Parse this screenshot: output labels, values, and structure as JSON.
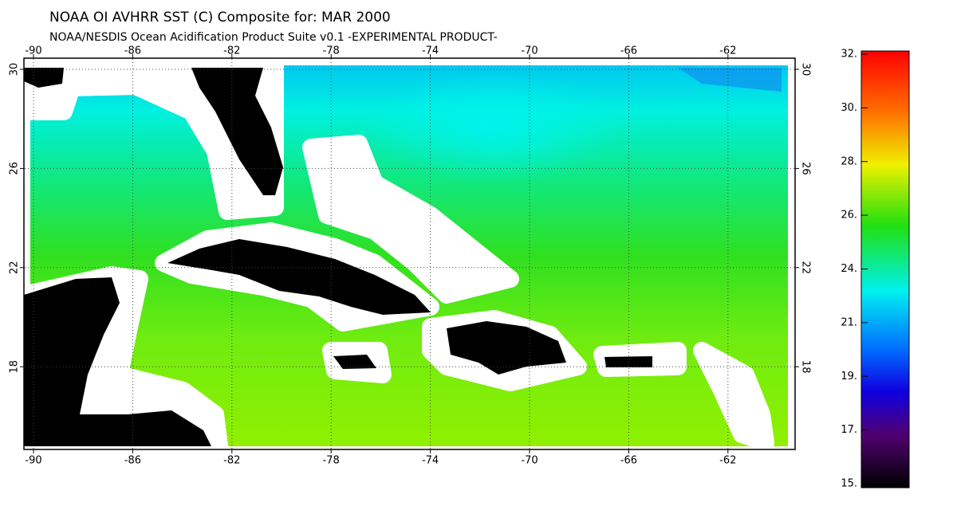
{
  "header": {
    "title": "NOAA OI AVHRR SST (C) Composite for: MAR 2000",
    "subtitle": "NOAA/NESDIS Ocean Acidification Product Suite  v0.1 -EXPERIMENTAL PRODUCT-"
  },
  "map": {
    "lon_ticks": [
      -90,
      -86,
      -82,
      -78,
      -74,
      -70,
      -66,
      -62
    ],
    "lat_ticks": [
      30,
      26,
      22,
      18
    ]
  },
  "colorbar": {
    "labels": [
      "32.",
      "30.",
      "28.",
      "26.",
      "24.",
      "21.",
      "19.",
      "17.",
      "15."
    ]
  }
}
